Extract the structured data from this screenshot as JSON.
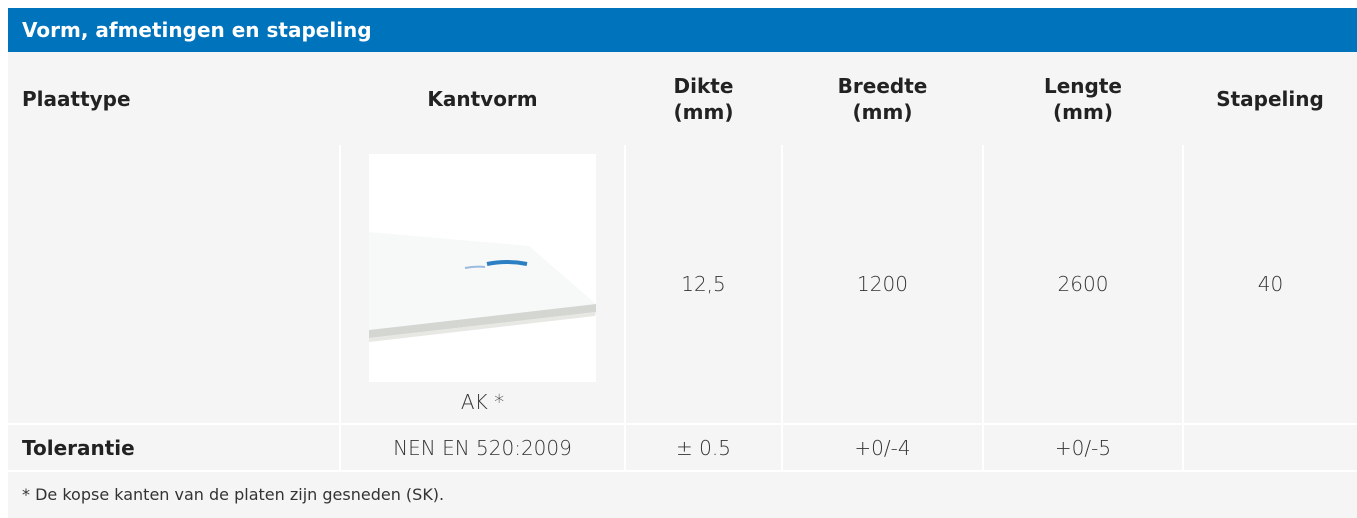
{
  "header": {
    "title": "Vorm, afmetingen en stapeling"
  },
  "table": {
    "columns": [
      "Plaattype",
      "Kantvorm",
      "Dikte\n(mm)",
      "Breedte\n(mm)",
      "Lengte\n(mm)",
      "Stapeling"
    ],
    "rows": [
      [
        "",
        "AK *",
        "12,5",
        "1200",
        "2600",
        "40"
      ],
      [
        "Tolerantie",
        "NEN EN 520:2009",
        "± 0.5",
        "+0/-4",
        "+0/-5",
        ""
      ]
    ]
  },
  "footnote": "* De kopse kanten van de platen zijn gesneden (SK)."
}
